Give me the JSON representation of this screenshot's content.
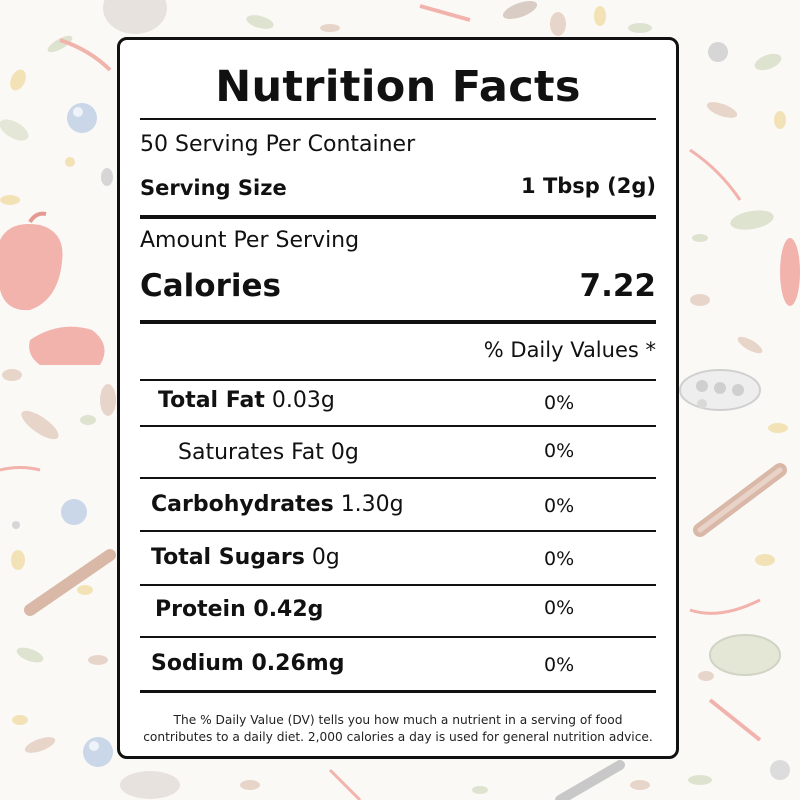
{
  "title": "Nutrition Facts",
  "servings_per_container": "50 Serving Per Container",
  "serving_size_label": "Serving Size",
  "serving_size_value": "1 Tbsp (2g)",
  "amount_per_serving": "Amount Per Serving",
  "calories_label": "Calories",
  "calories_value": "7.22",
  "daily_values_header": "% Daily Values *",
  "nutrients": [
    {
      "name": "Total Fat",
      "amount": "0.03g",
      "percent": "0%"
    },
    {
      "name": "Saturates Fat",
      "amount": "0g",
      "percent": "0%"
    },
    {
      "name": "Carbohydrates",
      "amount": "1.30g",
      "percent": "0%"
    },
    {
      "name": "Total Sugars",
      "amount": "0g",
      "percent": "0%"
    },
    {
      "name": "Protein 0.42g",
      "amount": "",
      "percent": "0%"
    },
    {
      "name": "Sodium 0.26mg",
      "amount": "",
      "percent": "0%"
    }
  ],
  "footnote": "The % Daily Value (DV) tells you how much a nutrient in a serving of food contributes to a daily diet. 2,000 calories a day is used for general nutrition advice.",
  "colors": {
    "background": "#fbf9f6",
    "label_border": "#111111",
    "illustration_red": "#f2b3ac",
    "illustration_brown": "#d9b8a8",
    "illustration_blue": "#c9d7e8",
    "illustration_green": "#dde3cf",
    "illustration_yellow": "#f3e2b5"
  }
}
